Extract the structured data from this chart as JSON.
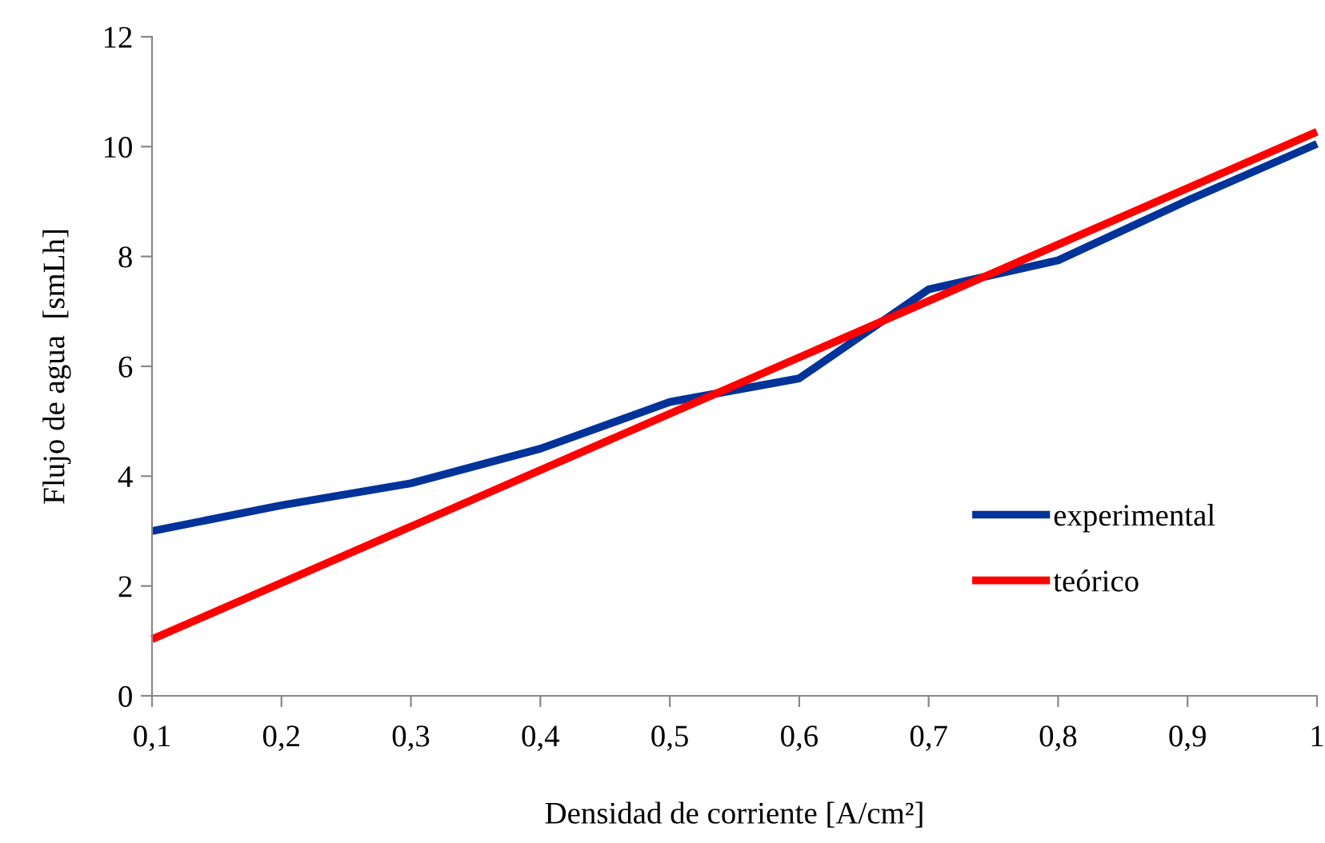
{
  "chart_data": {
    "type": "line",
    "xlabel": "Densidad de corriente [A/cm²]",
    "ylabel": "Flujo de agua  [smLh]",
    "x": [
      0.1,
      0.2,
      0.3,
      0.4,
      0.5,
      0.6,
      0.7,
      0.8,
      0.9,
      1.0
    ],
    "series": [
      {
        "name": "experimental",
        "color": "#003399",
        "values": [
          3.0,
          3.47,
          3.87,
          4.5,
          5.35,
          5.78,
          7.4,
          7.93,
          9.02,
          10.05
        ]
      },
      {
        "name": "teórico",
        "color": "#ff0000",
        "x": [
          0.1,
          1.0
        ],
        "values": [
          1.03,
          10.27
        ]
      }
    ],
    "xlim": [
      0.1,
      1.0
    ],
    "xticks": [
      {
        "value": 0.1,
        "label": "0,1"
      },
      {
        "value": 0.2,
        "label": "0,2"
      },
      {
        "value": 0.3,
        "label": "0,3"
      },
      {
        "value": 0.4,
        "label": "0,4"
      },
      {
        "value": 0.5,
        "label": "0,5"
      },
      {
        "value": 0.6,
        "label": "0,6"
      },
      {
        "value": 0.7,
        "label": "0,7"
      },
      {
        "value": 0.8,
        "label": "0,8"
      },
      {
        "value": 0.9,
        "label": "0,9"
      },
      {
        "value": 1.0,
        "label": "1"
      }
    ],
    "ylim": [
      0,
      12
    ],
    "yticks": [
      0,
      2,
      4,
      6,
      8,
      10,
      12
    ],
    "grid": false,
    "legend": "right",
    "marker": "none",
    "line_style": "solid"
  }
}
